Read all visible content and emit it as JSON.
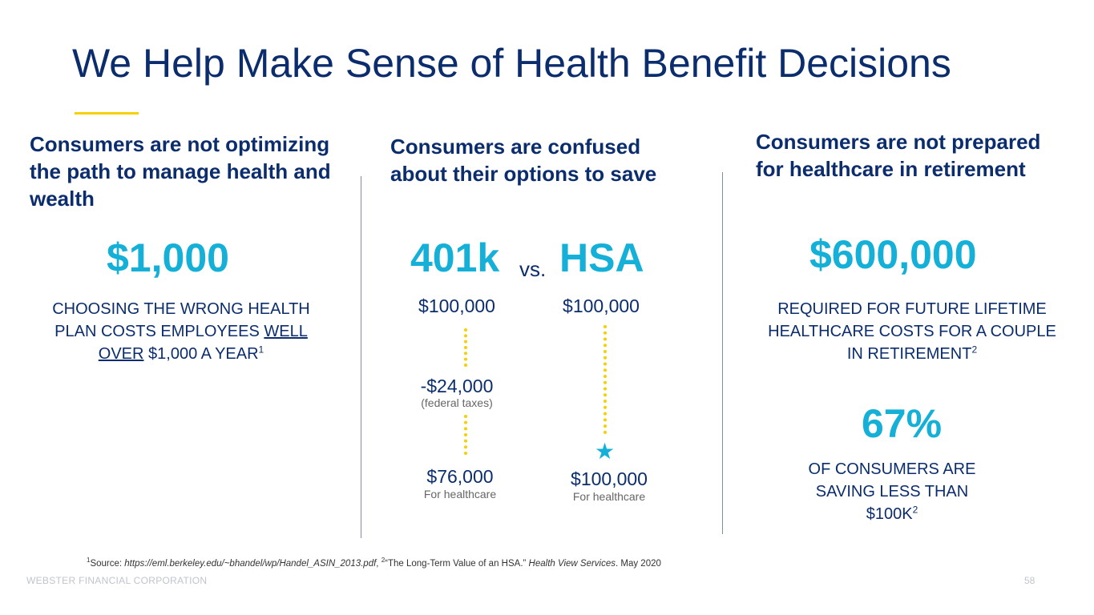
{
  "title": "We Help Make Sense of Health Benefit Decisions",
  "colors": {
    "navy": "#0b2d6e",
    "accent": "#14b0d8",
    "gold": "#f5d100"
  },
  "col1": {
    "heading": "Consumers are not optimizing the path to manage health and wealth",
    "stat": "$1,000",
    "desc_a": "CHOOSING THE WRONG HEALTH PLAN COSTS EMPLOYEES",
    "desc_u": "WELL OVER",
    "desc_b": "$1,000 A YEAR",
    "desc_sup": "1"
  },
  "col2": {
    "heading": "Consumers are confused about their options to save",
    "left_label": "401k",
    "vs": "vs.",
    "right_label": "HSA",
    "left_start": "$100,000",
    "right_start": "$100,000",
    "deduction": "-$24,000",
    "deduction_note": "(federal taxes)",
    "left_end": "$76,000",
    "left_end_note": "For healthcare",
    "right_end": "$100,000",
    "right_end_note": "For healthcare",
    "star": "★"
  },
  "col3": {
    "heading": "Consumers are not prepared for healthcare in retirement",
    "stat1": "$600,000",
    "desc1": "REQUIRED FOR FUTURE LIFETIME HEALTHCARE COSTS FOR A COUPLE IN RETIREMENT",
    "desc1_sup": "2",
    "stat2": "67%",
    "desc2": "OF CONSUMERS ARE SAVING LESS THAN $100K",
    "desc2_sup": "2"
  },
  "footnote": {
    "sup1": "1",
    "source_label": "Source: ",
    "source_url": "https://eml.berkeley.edu/~bhandel/wp/Handel_ASIN_2013.pdf",
    "sep": ", ",
    "sup2": "2",
    "quote": "“The Long-Term Value of an HSA.” ",
    "publisher": "Health View Services",
    "date": ". May 2020"
  },
  "footer": {
    "company": "WEBSTER FINANCIAL CORPORATION",
    "page_number": "58"
  }
}
